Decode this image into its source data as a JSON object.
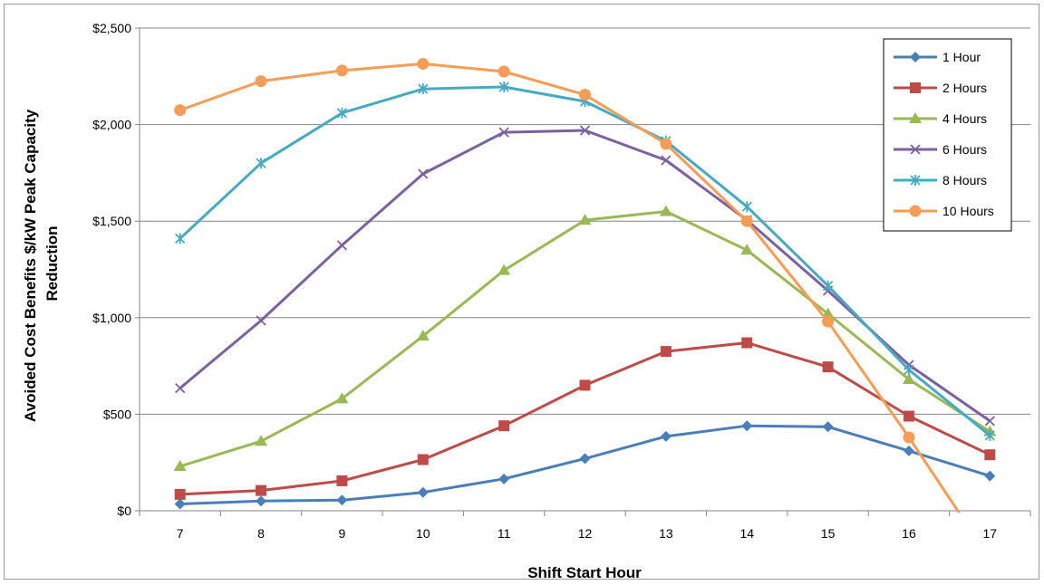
{
  "chart_data": {
    "type": "line",
    "title": "",
    "xlabel": "Shift Start Hour",
    "ylabel": "Avoided Cost Benefits $/kW Peak Capacity Reduction",
    "ylabel_lines": [
      "Avoided Cost Benefits $/kW Peak Capacity",
      "Reduction"
    ],
    "x": [
      7,
      8,
      9,
      10,
      11,
      12,
      13,
      14,
      15,
      16,
      17
    ],
    "x_tick_labels": [
      "7",
      "8",
      "9",
      "10",
      "11",
      "12",
      "13",
      "14",
      "15",
      "16",
      "17"
    ],
    "ylim": [
      0,
      2500
    ],
    "y_tick_values": [
      0,
      500,
      1000,
      1500,
      2000,
      2500
    ],
    "y_tick_labels": [
      "$0",
      "$500",
      "$1,000",
      "$1,500",
      "$2,000",
      "$2,500"
    ],
    "grid": "horizontal",
    "legend_position": "top-right",
    "series": [
      {
        "name": "1 Hour",
        "color": "#4a7ebb",
        "marker": "diamond",
        "values": [
          35,
          50,
          55,
          95,
          165,
          270,
          385,
          440,
          435,
          310,
          180
        ]
      },
      {
        "name": "2 Hours",
        "color": "#be4b48",
        "marker": "square",
        "values": [
          85,
          105,
          155,
          265,
          440,
          650,
          825,
          870,
          745,
          490,
          290
        ]
      },
      {
        "name": "4 Hours",
        "color": "#98b954",
        "marker": "triangle",
        "values": [
          230,
          360,
          580,
          905,
          1245,
          1505,
          1550,
          1350,
          1020,
          680,
          410
        ]
      },
      {
        "name": "6 Hours",
        "color": "#7d60a0",
        "marker": "x",
        "values": [
          635,
          985,
          1375,
          1745,
          1960,
          1970,
          1815,
          1505,
          1140,
          755,
          465
        ]
      },
      {
        "name": "8 Hours",
        "color": "#46aac5",
        "marker": "star",
        "values": [
          1410,
          1800,
          2060,
          2185,
          2195,
          2120,
          1915,
          1575,
          1165,
          730,
          390
        ]
      },
      {
        "name": "10 Hours",
        "color": "#f59d56",
        "marker": "circle",
        "values": [
          2075,
          2225,
          2280,
          2315,
          2275,
          2155,
          1900,
          1500,
          980,
          380,
          -250
        ]
      }
    ]
  }
}
